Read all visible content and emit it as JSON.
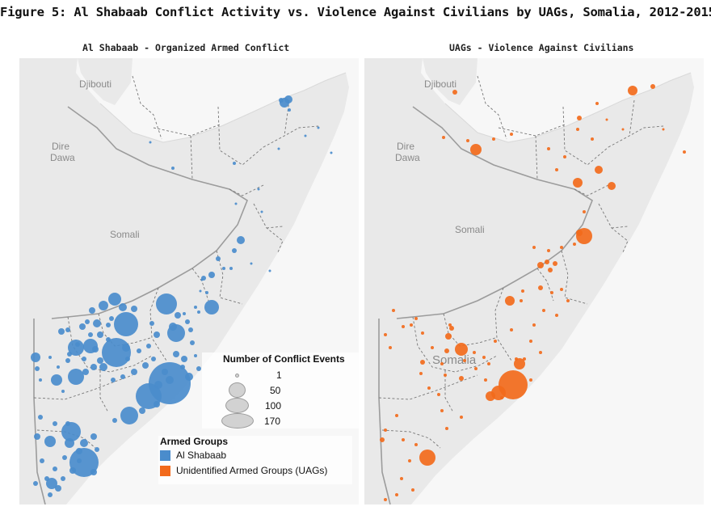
{
  "title": "Figure 5: Al Shabaab Conflict Activity vs. Violence Against Civilians by UAGs, Somalia, 2012-2015",
  "colors": {
    "al_shabaab": "#4a8ccc",
    "uags": "#f26a1b",
    "land": "#e9e9e9",
    "sea": "#ffffff"
  },
  "panels": [
    {
      "title": "Al Shabaab - Organized Armed Conflict",
      "labels": [
        "Djibouti",
        "Dire Dawa",
        "Somali"
      ]
    },
    {
      "title": "UAGs - Violence Against Civilians",
      "labels": [
        "Djibouti",
        "Dire Dawa",
        "Somali",
        "Somalia"
      ]
    }
  ],
  "size_legend": {
    "title": "Number of Conflict Events",
    "items": [
      {
        "label": "1",
        "value": 1
      },
      {
        "label": "50",
        "value": 50
      },
      {
        "label": "100",
        "value": 100
      },
      {
        "label": "170",
        "value": 170
      }
    ]
  },
  "group_legend": {
    "title": "Armed Groups",
    "items": [
      {
        "label": "Al Shabaab",
        "color": "#4a8ccc"
      },
      {
        "label": "Unidentified Armed Groups (UAGs)",
        "color": "#f26a1b"
      }
    ]
  }
}
